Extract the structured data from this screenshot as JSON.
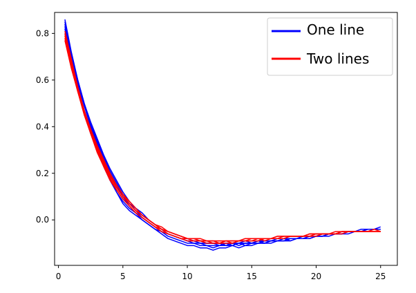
{
  "chart_data": {
    "type": "line",
    "title": "",
    "xlabel": "",
    "ylabel": "",
    "xlim": [
      -0.3,
      26.3
    ],
    "ylim": [
      -0.195,
      0.89
    ],
    "xticks": [
      0,
      5,
      10,
      15,
      20,
      25
    ],
    "yticks": [
      0.0,
      0.2,
      0.4,
      0.6,
      0.8
    ],
    "ytick_labels": [
      "0.0",
      "0.2",
      "0.4",
      "0.6",
      "0.8"
    ],
    "grid": false,
    "legend": {
      "location": "top-right",
      "entries": [
        {
          "label": "One line",
          "color": "#0000ff"
        },
        {
          "label": "Two lines",
          "color": "#ff0000"
        }
      ]
    },
    "x": [
      0.5,
      1,
      1.5,
      2,
      2.5,
      3,
      3.5,
      4,
      4.5,
      5,
      5.5,
      6,
      6.5,
      7,
      7.5,
      8,
      8.5,
      9,
      9.5,
      10,
      10.5,
      11,
      11.5,
      12,
      12.5,
      13,
      13.5,
      14,
      14.5,
      15,
      15.5,
      16,
      16.5,
      17,
      17.5,
      18,
      18.5,
      19,
      19.5,
      20,
      20.5,
      21,
      21.5,
      22,
      22.5,
      23,
      23.5,
      24,
      24.5,
      25
    ],
    "series": [
      {
        "group": "One line",
        "color": "#0000ff",
        "values": [
          0.86,
          0.72,
          0.6,
          0.5,
          0.41,
          0.34,
          0.27,
          0.21,
          0.16,
          0.11,
          0.07,
          0.04,
          0.01,
          -0.01,
          -0.03,
          -0.05,
          -0.06,
          -0.07,
          -0.08,
          -0.09,
          -0.09,
          -0.1,
          -0.1,
          -0.1,
          -0.11,
          -0.1,
          -0.1,
          -0.11,
          -0.1,
          -0.1,
          -0.09,
          -0.1,
          -0.09,
          -0.09,
          -0.08,
          -0.09,
          -0.08,
          -0.08,
          -0.08,
          -0.07,
          -0.07,
          -0.07,
          -0.06,
          -0.06,
          -0.06,
          -0.05,
          -0.05,
          -0.05,
          -0.04,
          -0.04
        ]
      },
      {
        "group": "One line",
        "color": "#0000ff",
        "values": [
          0.84,
          0.7,
          0.58,
          0.49,
          0.41,
          0.33,
          0.26,
          0.2,
          0.15,
          0.1,
          0.06,
          0.03,
          0.0,
          -0.02,
          -0.04,
          -0.05,
          -0.07,
          -0.08,
          -0.09,
          -0.1,
          -0.1,
          -0.11,
          -0.11,
          -0.12,
          -0.11,
          -0.11,
          -0.11,
          -0.1,
          -0.11,
          -0.1,
          -0.1,
          -0.1,
          -0.09,
          -0.09,
          -0.09,
          -0.08,
          -0.08,
          -0.08,
          -0.07,
          -0.07,
          -0.07,
          -0.06,
          -0.06,
          -0.06,
          -0.05,
          -0.05,
          -0.05,
          -0.04,
          -0.04,
          -0.04
        ]
      },
      {
        "group": "One line",
        "color": "#0000ff",
        "values": [
          0.82,
          0.68,
          0.57,
          0.47,
          0.39,
          0.31,
          0.24,
          0.18,
          0.12,
          0.07,
          0.04,
          0.02,
          0.0,
          -0.02,
          -0.04,
          -0.06,
          -0.08,
          -0.09,
          -0.1,
          -0.11,
          -0.11,
          -0.12,
          -0.12,
          -0.13,
          -0.12,
          -0.12,
          -0.11,
          -0.12,
          -0.11,
          -0.11,
          -0.1,
          -0.1,
          -0.1,
          -0.09,
          -0.09,
          -0.09,
          -0.08,
          -0.08,
          -0.08,
          -0.07,
          -0.07,
          -0.06,
          -0.06,
          -0.06,
          -0.05,
          -0.05,
          -0.05,
          -0.04,
          -0.04,
          -0.04
        ]
      },
      {
        "group": "One line",
        "color": "#0000ff",
        "values": [
          0.8,
          0.67,
          0.56,
          0.46,
          0.37,
          0.3,
          0.23,
          0.17,
          0.12,
          0.08,
          0.05,
          0.03,
          0.01,
          -0.01,
          -0.03,
          -0.05,
          -0.06,
          -0.07,
          -0.08,
          -0.09,
          -0.09,
          -0.1,
          -0.1,
          -0.1,
          -0.1,
          -0.1,
          -0.1,
          -0.1,
          -0.09,
          -0.1,
          -0.09,
          -0.09,
          -0.09,
          -0.08,
          -0.08,
          -0.08,
          -0.08,
          -0.07,
          -0.07,
          -0.07,
          -0.06,
          -0.06,
          -0.06,
          -0.06,
          -0.05,
          -0.05,
          -0.05,
          -0.04,
          -0.04,
          -0.04
        ]
      },
      {
        "group": "One line",
        "color": "#0000ff",
        "values": [
          0.83,
          0.7,
          0.59,
          0.49,
          0.4,
          0.32,
          0.25,
          0.19,
          0.14,
          0.1,
          0.07,
          0.05,
          0.03,
          0.0,
          -0.02,
          -0.04,
          -0.06,
          -0.07,
          -0.08,
          -0.09,
          -0.1,
          -0.1,
          -0.11,
          -0.11,
          -0.11,
          -0.1,
          -0.11,
          -0.1,
          -0.1,
          -0.1,
          -0.09,
          -0.09,
          -0.09,
          -0.09,
          -0.08,
          -0.08,
          -0.08,
          -0.07,
          -0.07,
          -0.07,
          -0.06,
          -0.06,
          -0.06,
          -0.05,
          -0.05,
          -0.05,
          -0.04,
          -0.04,
          -0.04,
          -0.03
        ]
      },
      {
        "group": "One line",
        "color": "#0000ff",
        "values": [
          0.85,
          0.71,
          0.6,
          0.5,
          0.42,
          0.35,
          0.28,
          0.22,
          0.17,
          0.12,
          0.08,
          0.05,
          0.02,
          0.0,
          -0.02,
          -0.04,
          -0.05,
          -0.06,
          -0.07,
          -0.08,
          -0.09,
          -0.09,
          -0.1,
          -0.1,
          -0.1,
          -0.11,
          -0.1,
          -0.1,
          -0.1,
          -0.1,
          -0.1,
          -0.09,
          -0.09,
          -0.09,
          -0.09,
          -0.08,
          -0.08,
          -0.08,
          -0.07,
          -0.07,
          -0.07,
          -0.06,
          -0.06,
          -0.06,
          -0.05,
          -0.05,
          -0.05,
          -0.04,
          -0.04,
          -0.04
        ]
      },
      {
        "group": "Two lines",
        "color": "#ff0000",
        "values": [
          0.8,
          0.68,
          0.57,
          0.47,
          0.38,
          0.3,
          0.24,
          0.18,
          0.13,
          0.09,
          0.06,
          0.03,
          0.01,
          -0.01,
          -0.03,
          -0.05,
          -0.06,
          -0.07,
          -0.08,
          -0.09,
          -0.09,
          -0.09,
          -0.1,
          -0.1,
          -0.1,
          -0.1,
          -0.1,
          -0.09,
          -0.09,
          -0.09,
          -0.09,
          -0.08,
          -0.08,
          -0.08,
          -0.08,
          -0.07,
          -0.07,
          -0.07,
          -0.07,
          -0.06,
          -0.06,
          -0.06,
          -0.06,
          -0.05,
          -0.05,
          -0.05,
          -0.05,
          -0.05,
          -0.05,
          -0.05
        ]
      },
      {
        "group": "Two lines",
        "color": "#ff0000",
        "values": [
          0.79,
          0.67,
          0.56,
          0.46,
          0.38,
          0.31,
          0.25,
          0.19,
          0.14,
          0.1,
          0.07,
          0.04,
          0.02,
          0.0,
          -0.02,
          -0.04,
          -0.05,
          -0.06,
          -0.07,
          -0.08,
          -0.08,
          -0.09,
          -0.09,
          -0.09,
          -0.1,
          -0.09,
          -0.09,
          -0.09,
          -0.09,
          -0.08,
          -0.08,
          -0.08,
          -0.08,
          -0.08,
          -0.07,
          -0.07,
          -0.07,
          -0.07,
          -0.06,
          -0.06,
          -0.06,
          -0.06,
          -0.06,
          -0.05,
          -0.05,
          -0.05,
          -0.05,
          -0.05,
          -0.05,
          -0.05
        ]
      },
      {
        "group": "Two lines",
        "color": "#ff0000",
        "values": [
          0.78,
          0.66,
          0.55,
          0.45,
          0.37,
          0.29,
          0.23,
          0.17,
          0.13,
          0.09,
          0.06,
          0.03,
          0.01,
          -0.01,
          -0.03,
          -0.04,
          -0.06,
          -0.07,
          -0.08,
          -0.08,
          -0.09,
          -0.09,
          -0.09,
          -0.1,
          -0.1,
          -0.09,
          -0.1,
          -0.09,
          -0.09,
          -0.09,
          -0.08,
          -0.09,
          -0.08,
          -0.08,
          -0.08,
          -0.07,
          -0.07,
          -0.07,
          -0.07,
          -0.07,
          -0.06,
          -0.06,
          -0.06,
          -0.06,
          -0.05,
          -0.05,
          -0.05,
          -0.05,
          -0.05,
          -0.05
        ]
      },
      {
        "group": "Two lines",
        "color": "#ff0000",
        "values": [
          0.81,
          0.69,
          0.57,
          0.47,
          0.39,
          0.32,
          0.26,
          0.2,
          0.15,
          0.11,
          0.07,
          0.04,
          0.02,
          0.0,
          -0.02,
          -0.04,
          -0.05,
          -0.06,
          -0.07,
          -0.08,
          -0.08,
          -0.08,
          -0.09,
          -0.09,
          -0.09,
          -0.09,
          -0.09,
          -0.09,
          -0.08,
          -0.08,
          -0.08,
          -0.08,
          -0.08,
          -0.07,
          -0.07,
          -0.07,
          -0.07,
          -0.07,
          -0.06,
          -0.06,
          -0.06,
          -0.06,
          -0.05,
          -0.05,
          -0.05,
          -0.05,
          -0.05,
          -0.05,
          -0.04,
          -0.05
        ]
      },
      {
        "group": "Two lines",
        "color": "#ff0000",
        "values": [
          0.77,
          0.65,
          0.55,
          0.46,
          0.38,
          0.31,
          0.25,
          0.19,
          0.15,
          0.11,
          0.08,
          0.05,
          0.02,
          0.0,
          -0.02,
          -0.03,
          -0.05,
          -0.06,
          -0.07,
          -0.08,
          -0.08,
          -0.09,
          -0.09,
          -0.09,
          -0.09,
          -0.09,
          -0.09,
          -0.09,
          -0.08,
          -0.08,
          -0.08,
          -0.08,
          -0.08,
          -0.07,
          -0.07,
          -0.07,
          -0.07,
          -0.07,
          -0.06,
          -0.06,
          -0.06,
          -0.06,
          -0.06,
          -0.05,
          -0.05,
          -0.05,
          -0.05,
          -0.05,
          -0.05,
          -0.05
        ]
      }
    ]
  }
}
